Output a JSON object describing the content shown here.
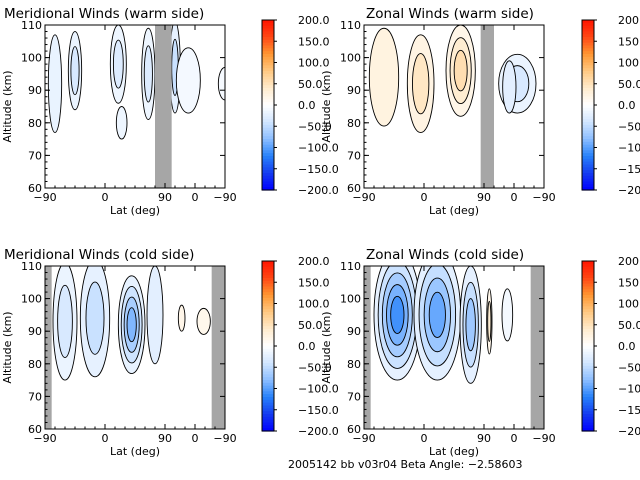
{
  "footer": "2005142 bb v03r04   Beta Angle: −2.58603",
  "colorbar_ticks": [
    "200.0",
    "150.0",
    "100.0",
    "50.0",
    "0.0",
    "−50.0",
    "−100.0",
    "−150.0",
    "−200.0"
  ],
  "colorbar_range": [
    -200,
    200
  ],
  "colors": {
    "strong_positive": "#ff2000",
    "strong_negative": "#0000ff",
    "neutral": "#ffffff",
    "no_data": "#a6a6a6"
  },
  "chart_data": [
    {
      "type": "heatmap",
      "title": "Meridional Winds (warm side)",
      "xlabel": "Lat (deg)",
      "ylabel": "Altitude (km)",
      "xticks": [
        "−90",
        "0",
        "90",
        "0",
        "−90"
      ],
      "yticks": [
        "60",
        "70",
        "80",
        "90",
        "100",
        "110"
      ],
      "ylim": [
        60,
        110
      ],
      "no_data_bands": [
        {
          "from": 75,
          "to": 100
        }
      ],
      "blobs": [
        {
          "x": -75,
          "y": 92,
          "rx": 10,
          "ry": 15,
          "v": -20
        },
        {
          "x": -45,
          "y": 96,
          "rx": 10,
          "ry": 12,
          "v": -35
        },
        {
          "x": 20,
          "y": 98,
          "rx": 12,
          "ry": 12,
          "v": -30
        },
        {
          "x": 25,
          "y": 80,
          "rx": 8,
          "ry": 5,
          "v": -15
        },
        {
          "x": 65,
          "y": 95,
          "rx": 10,
          "ry": 14,
          "v": -30
        },
        {
          "x": 105,
          "y": 97,
          "rx": 8,
          "ry": 14,
          "v": -45
        },
        {
          "x": 125,
          "y": 93,
          "rx": 18,
          "ry": 10,
          "v": -10
        },
        {
          "x": 180,
          "y": 92,
          "rx": 10,
          "ry": 5,
          "v": -8
        }
      ]
    },
    {
      "type": "heatmap",
      "title": "Zonal Winds (warm side)",
      "xlabel": "Lat (deg)",
      "ylabel": "Altitude (km)",
      "xticks": [
        "−90",
        "0",
        "90",
        "0",
        "−90"
      ],
      "yticks": [
        "60",
        "70",
        "80",
        "90",
        "100",
        "110"
      ],
      "ylim": [
        60,
        110
      ],
      "no_data_bands": [
        {
          "from": 85,
          "to": 105
        }
      ],
      "blobs": [
        {
          "x": -60,
          "y": 94,
          "rx": 22,
          "ry": 15,
          "v": 25
        },
        {
          "x": -5,
          "y": 92,
          "rx": 20,
          "ry": 15,
          "v": 45
        },
        {
          "x": 55,
          "y": 96,
          "rx": 22,
          "ry": 14,
          "v": 55
        },
        {
          "x": 140,
          "y": 92,
          "rx": 28,
          "ry": 9,
          "v": -35
        },
        {
          "x": 128,
          "y": 91,
          "rx": 10,
          "ry": 8,
          "v": -25
        }
      ]
    },
    {
      "type": "heatmap",
      "title": "Meridional Winds (cold side)",
      "xlabel": "Lat (deg)",
      "ylabel": "Altitude (km)",
      "xticks": [
        "−90",
        "0",
        "90",
        "0",
        "−90"
      ],
      "yticks": [
        "60",
        "70",
        "80",
        "90",
        "100",
        "110"
      ],
      "ylim": [
        60,
        110
      ],
      "no_data_bands": [
        {
          "from": -90,
          "to": -80
        },
        {
          "from": 160,
          "to": 180
        }
      ],
      "blobs": [
        {
          "x": -60,
          "y": 93,
          "rx": 18,
          "ry": 18,
          "v": -35
        },
        {
          "x": -15,
          "y": 94,
          "rx": 22,
          "ry": 18,
          "v": -45
        },
        {
          "x": 40,
          "y": 92,
          "rx": 20,
          "ry": 15,
          "v": -85
        },
        {
          "x": 75,
          "y": 95,
          "rx": 12,
          "ry": 15,
          "v": -25
        },
        {
          "x": 115,
          "y": 94,
          "rx": 5,
          "ry": 4,
          "v": 18
        },
        {
          "x": 148,
          "y": 93,
          "rx": 10,
          "ry": 4,
          "v": 15
        }
      ]
    },
    {
      "type": "heatmap",
      "title": "Zonal Winds (cold side)",
      "xlabel": "Lat (deg)",
      "ylabel": "Altitude (km)",
      "xticks": [
        "−90",
        "0",
        "90",
        "0",
        "−90"
      ],
      "yticks": [
        "60",
        "70",
        "80",
        "90",
        "100",
        "110"
      ],
      "ylim": [
        60,
        110
      ],
      "no_data_bands": [
        {
          "from": -90,
          "to": -80
        },
        {
          "from": 160,
          "to": 180
        }
      ],
      "blobs": [
        {
          "x": -40,
          "y": 95,
          "rx": 35,
          "ry": 20,
          "v": -110
        },
        {
          "x": 20,
          "y": 95,
          "rx": 35,
          "ry": 20,
          "v": -95
        },
        {
          "x": 70,
          "y": 92,
          "rx": 16,
          "ry": 18,
          "v": -70
        },
        {
          "x": 98,
          "y": 93,
          "rx": 4,
          "ry": 10,
          "v": 35
        },
        {
          "x": 125,
          "y": 95,
          "rx": 8,
          "ry": 8,
          "v": -10
        }
      ]
    }
  ]
}
